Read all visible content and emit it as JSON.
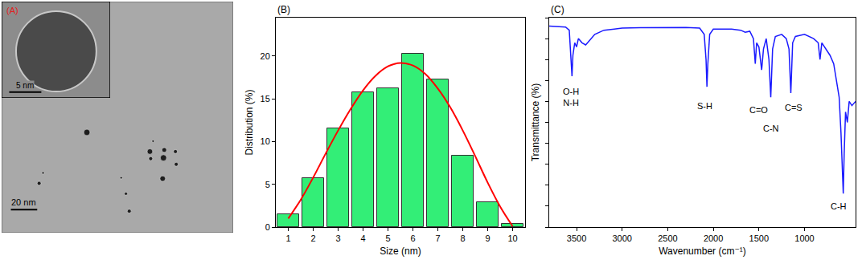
{
  "chart_data": [
    {
      "type": "image",
      "tick_labels": false,
      "xlim": [
        0,
        176
      ],
      "ylim": [
        0,
        176
      ],
      "particles": [
        {
          "x": 112.7,
          "y": 61.8,
          "d": 4.2
        },
        {
          "x": 123.6,
          "y": 63.0,
          "d": 3.6
        },
        {
          "x": 113.3,
          "y": 56.4,
          "d": 3.0
        },
        {
          "x": 123.0,
          "y": 57.0,
          "d": 4.8
        },
        {
          "x": 132.1,
          "y": 61.8,
          "d": 3.0
        },
        {
          "x": 132.7,
          "y": 52.1,
          "d": 3.0
        },
        {
          "x": 64.8,
          "y": 76.4,
          "d": 4.8
        },
        {
          "x": 28.5,
          "y": 37.6,
          "d": 3.0
        },
        {
          "x": 94.5,
          "y": 29.7,
          "d": 2.4
        },
        {
          "x": 97.0,
          "y": 16.4,
          "d": 3.0
        },
        {
          "x": 122.4,
          "y": 41.2,
          "d": 4.2
        },
        {
          "x": 90.9,
          "y": 41.8,
          "d": 1.8
        },
        {
          "x": 31.5,
          "y": 45.5,
          "d": 1.8
        },
        {
          "x": 115.1,
          "y": 69.7,
          "d": 1.8
        }
      ],
      "scale_bar": {
        "length": 20,
        "label": "20 nm"
      },
      "inset": {
        "label": "(A)",
        "color": "#e02020",
        "xlim": [
          0,
          16.9
        ],
        "ylim": [
          0,
          15
        ],
        "particles": [
          {
            "x": 8.5,
            "y": 7.25,
            "d": 12.5
          }
        ],
        "scale_bar": {
          "length": 5,
          "label": "5 nm"
        }
      }
    },
    {
      "type": "histogram",
      "label": "(B)",
      "x_label": "Size (nm)",
      "y_label": "Distribution (%)",
      "bins": [
        0.5,
        1.5,
        2.5,
        3.5,
        4.5,
        5.5,
        6.5,
        7.5,
        8.5,
        9.5,
        10.5
      ],
      "counts": [
        1.5,
        5.7,
        11.5,
        15.8,
        16.2,
        20.3,
        17.3,
        8.4,
        2.9,
        0.4
      ],
      "color": "#33ee77",
      "xlim": [
        0.5,
        10.5
      ],
      "xticks": [
        1,
        2,
        3,
        4,
        5,
        6,
        7,
        8,
        9,
        10
      ],
      "ylim": [
        0,
        24.5
      ],
      "yticks": [
        0,
        5,
        10,
        15,
        20
      ],
      "fit": {
        "type": "line",
        "color": "#ff0000",
        "x": [
          1,
          1.5,
          2,
          2.5,
          3,
          3.5,
          4,
          4.5,
          5,
          5.5,
          6,
          6.5,
          7,
          7.5,
          8,
          8.5,
          9,
          9.5,
          10
        ],
        "values": [
          1.0,
          3.2,
          5.8,
          8.6,
          11.3,
          13.8,
          16.0,
          17.7,
          18.8,
          19.2,
          18.9,
          17.9,
          16.2,
          14.0,
          11.3,
          8.3,
          5.2,
          2.4,
          0.1
        ]
      }
    },
    {
      "type": "line",
      "label": "(C)",
      "x_label": "Wavenumber (cm⁻¹)",
      "y_label": "Transmittance (%)",
      "color": "#1a1aff",
      "tick_labels": "x",
      "xlim": [
        3800,
        440
      ],
      "xticks": [
        3500,
        3000,
        2500,
        2000,
        1500,
        1000
      ],
      "ylim": [
        0,
        100
      ],
      "yticks": [
        0,
        10,
        20,
        30,
        40,
        50,
        60,
        70,
        80,
        90,
        100
      ],
      "x": [
        3800,
        3700,
        3620,
        3580,
        3560,
        3550,
        3540,
        3520,
        3500,
        3480,
        3440,
        3400,
        3360,
        3300,
        3200,
        3000,
        2800,
        2300,
        2150,
        2100,
        2080,
        2070,
        2060,
        2040,
        2000,
        1800,
        1700,
        1650,
        1600,
        1560,
        1540,
        1525,
        1500,
        1470,
        1450,
        1420,
        1390,
        1370,
        1350,
        1320,
        1250,
        1200,
        1170,
        1150,
        1130,
        1100,
        1000,
        950,
        900,
        850,
        830,
        810,
        780,
        720,
        680,
        650,
        620,
        600,
        585,
        575,
        565,
        550,
        530,
        510,
        480,
        440
      ],
      "values": [
        96,
        95.8,
        95.5,
        94,
        80,
        72,
        82,
        88,
        86,
        90,
        88,
        87,
        89,
        92,
        94,
        95,
        95.2,
        95.3,
        95,
        92,
        80,
        67,
        78,
        92,
        94.5,
        94.5,
        94,
        93,
        93.5,
        90,
        78,
        88,
        86,
        75,
        85,
        90,
        80,
        62,
        85,
        91,
        92,
        90,
        85,
        64,
        88,
        91,
        92,
        91,
        90,
        88,
        80,
        88,
        86,
        82,
        78,
        70,
        62,
        45,
        30,
        16,
        35,
        55,
        50,
        60,
        58,
        60
      ],
      "annotations": [
        {
          "text": "O-H\nN-H",
          "x": 3560,
          "y": 62
        },
        {
          "text": "S-H",
          "x": 2090,
          "y": 58
        },
        {
          "text": "C=O",
          "x": 1500,
          "y": 56
        },
        {
          "text": "C-N",
          "x": 1368,
          "y": 47
        },
        {
          "text": "C=S",
          "x": 1120,
          "y": 57
        },
        {
          "text": "C-H",
          "x": 623,
          "y": 10
        }
      ]
    }
  ]
}
